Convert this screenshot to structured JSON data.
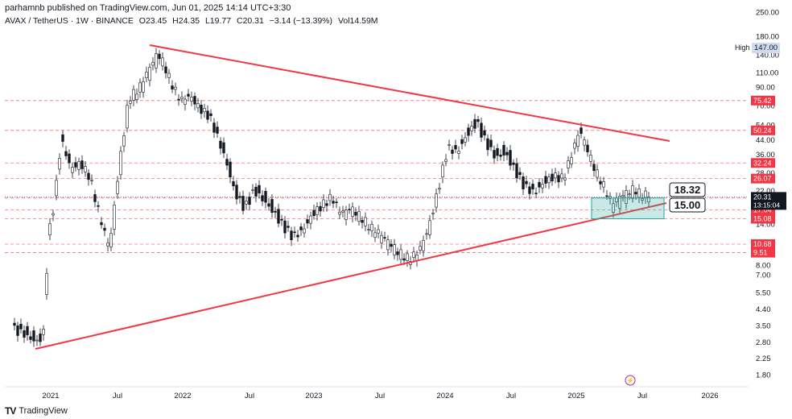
{
  "header": {
    "published": "parhamnb published on TradingView.com, Jun 01, 2025 14:14 UTC+3:30",
    "symbol": "AVAX / TetherUS · 1W · BINANCE",
    "open": "O23.45",
    "high": "H24.35",
    "low": "L19.77",
    "close": "C20.31",
    "change": "−3.14 (−13.39%)",
    "volume": "Vol14.59M"
  },
  "footer": {
    "brand": "TradingView"
  },
  "high_label": {
    "tag": "High",
    "value": "147.00"
  },
  "price_badge": {
    "value": "20.31",
    "countdown": "13:15:04"
  },
  "callouts": {
    "upper": "18.32",
    "lower": "15.00"
  },
  "colors": {
    "line": "#f23645",
    "bull": "#ffffff",
    "bear": "#131722",
    "zone": "#26a69a",
    "grid_label": "#131722"
  },
  "chart_data": {
    "type": "candlestick",
    "yscale": "log",
    "ylim": [
      1.6,
      260
    ],
    "xlabels": [
      "2021",
      "Jul",
      "2022",
      "Jul",
      "2023",
      "Jul",
      "2024",
      "Jul",
      "2025",
      "Jul",
      "2026"
    ],
    "yticks": [
      "250.00",
      "180.00",
      "140.00",
      "110.00",
      "90.00",
      "70.00",
      "54.00",
      "44.00",
      "36.00",
      "28.00",
      "22.00",
      "14.00",
      "8.00",
      "7.00",
      "5.50",
      "4.40",
      "3.50",
      "2.80",
      "2.25",
      "1.80"
    ],
    "levels": [
      {
        "value": "75.42",
        "label": "75.42"
      },
      {
        "value": "50.24",
        "label": "50.24"
      },
      {
        "value": "32.24",
        "label": "32.24"
      },
      {
        "value": "26.07",
        "label": "26.07"
      },
      {
        "value": "20.02",
        "label": "20.02"
      },
      {
        "value": "17.04",
        "label": "17.04"
      },
      {
        "value": "15.08",
        "label": "15.08"
      },
      {
        "value": "10.68",
        "label": "10.68"
      },
      {
        "value": "9.51",
        "label": "9.51"
      }
    ],
    "path": [
      [
        0,
        3.5
      ],
      [
        6,
        3.3
      ],
      [
        12,
        3.0
      ],
      [
        16,
        2.9
      ],
      [
        19,
        3.3
      ],
      [
        22,
        12
      ],
      [
        26,
        20
      ],
      [
        30,
        45
      ],
      [
        36,
        30
      ],
      [
        42,
        32
      ],
      [
        48,
        26
      ],
      [
        52,
        18
      ],
      [
        56,
        13
      ],
      [
        60,
        10
      ],
      [
        66,
        30
      ],
      [
        72,
        75
      ],
      [
        78,
        85
      ],
      [
        84,
        110
      ],
      [
        90,
        140
      ],
      [
        94,
        120
      ],
      [
        98,
        95
      ],
      [
        104,
        75
      ],
      [
        110,
        80
      ],
      [
        116,
        68
      ],
      [
        122,
        62
      ],
      [
        126,
        50
      ],
      [
        132,
        35
      ],
      [
        138,
        22
      ],
      [
        144,
        18
      ],
      [
        150,
        23
      ],
      [
        156,
        20
      ],
      [
        162,
        17
      ],
      [
        168,
        14
      ],
      [
        174,
        12
      ],
      [
        180,
        13
      ],
      [
        186,
        16
      ],
      [
        192,
        18
      ],
      [
        198,
        20
      ],
      [
        204,
        16
      ],
      [
        210,
        17
      ],
      [
        216,
        15
      ],
      [
        222,
        13
      ],
      [
        228,
        12
      ],
      [
        234,
        10.5
      ],
      [
        240,
        9.2
      ],
      [
        246,
        8.5
      ],
      [
        252,
        9.5
      ],
      [
        258,
        13
      ],
      [
        264,
        22
      ],
      [
        270,
        40
      ],
      [
        276,
        38
      ],
      [
        282,
        48
      ],
      [
        288,
        58
      ],
      [
        294,
        44
      ],
      [
        300,
        36
      ],
      [
        306,
        38
      ],
      [
        312,
        30
      ],
      [
        318,
        24
      ],
      [
        324,
        22
      ],
      [
        330,
        25
      ],
      [
        336,
        27
      ],
      [
        342,
        26
      ],
      [
        348,
        38
      ],
      [
        352,
        50
      ],
      [
        356,
        40
      ],
      [
        362,
        28
      ],
      [
        368,
        22
      ],
      [
        372,
        18
      ],
      [
        378,
        20
      ],
      [
        382,
        21
      ],
      [
        386,
        22
      ],
      [
        390,
        20.3
      ]
    ]
  }
}
